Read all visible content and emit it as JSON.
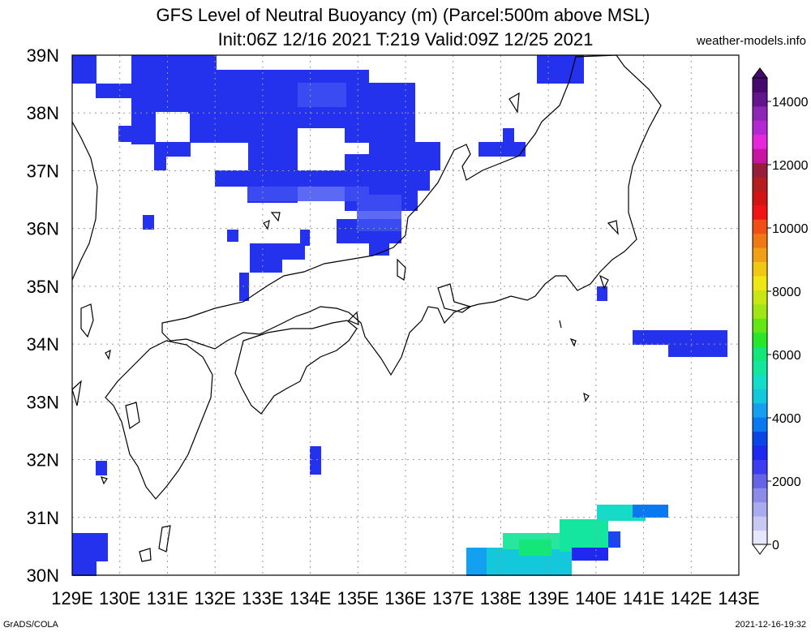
{
  "title_line1": "GFS Level of Neutral Buoyancy (m) (Parcel:500m above MSL)",
  "title_line2": "Init:06Z 12/16 2021 T:219 Valid:09Z 12/25 2021",
  "site": "weather-models.info",
  "footer_left": "GrADS/COLA",
  "footer_right": "2021-12-16-19:32",
  "map": {
    "lon_labels": [
      "129E",
      "130E",
      "131E",
      "132E",
      "133E",
      "134E",
      "135E",
      "136E",
      "137E",
      "138E",
      "139E",
      "140E",
      "141E",
      "142E",
      "143E"
    ],
    "lat_labels": [
      "30N",
      "31N",
      "32N",
      "33N",
      "34N",
      "35N",
      "36N",
      "37N",
      "38N",
      "39N"
    ],
    "lon_range": [
      129,
      143
    ],
    "lat_range": [
      30,
      39
    ]
  },
  "colorbar": {
    "labels": [
      "0",
      "2000",
      "4000",
      "6000",
      "8000",
      "10000",
      "12000",
      "14000"
    ],
    "colors": [
      "#e6e6ff",
      "#c8c8f5",
      "#aaaaee",
      "#8c8ce8",
      "#6464e6",
      "#3c3cf0",
      "#1e28f0",
      "#0a46e6",
      "#0a78f0",
      "#14a0f0",
      "#14c8dc",
      "#14dcc8",
      "#14e6a0",
      "#14e678",
      "#28e628",
      "#64e614",
      "#a0e614",
      "#c8e614",
      "#f0e614",
      "#f0c814",
      "#f0a014",
      "#f07814",
      "#f05014",
      "#f01414",
      "#d21414",
      "#b41e1e",
      "#961e3c",
      "#c814a0",
      "#e628dc",
      "#b428d2",
      "#8c28b4",
      "#64148c",
      "#460a6e"
    ]
  }
}
